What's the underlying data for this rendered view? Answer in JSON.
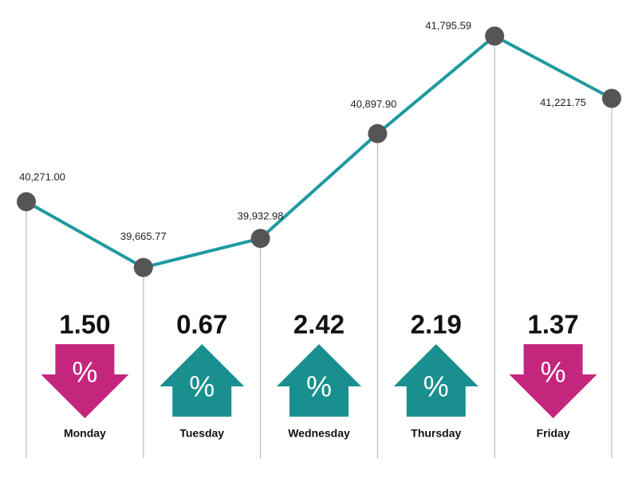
{
  "chart_data": {
    "type": "line",
    "series": [
      {
        "color": "#1e9aa0",
        "marker_color": "#555555",
        "values": [
          40271.0,
          39665.77,
          39932.98,
          40897.9,
          41795.59,
          41221.75
        ],
        "value_labels": [
          "40,271.00",
          "39,665.77",
          "39,932.98",
          "40,897.90",
          "41,795.59",
          "41,221.75"
        ]
      }
    ],
    "ylim": [
      39400,
      41900
    ],
    "changes": {
      "categories": [
        "Monday",
        "Tuesday",
        "Wednesday",
        "Thursday",
        "Friday"
      ],
      "values": [
        1.5,
        0.67,
        2.42,
        2.19,
        1.37
      ],
      "value_labels": [
        "1.50",
        "0.67",
        "2.42",
        "2.19",
        "1.37"
      ],
      "symbol": "%",
      "up_color": "#1a8f8f",
      "down_color": "#c4267e"
    }
  }
}
